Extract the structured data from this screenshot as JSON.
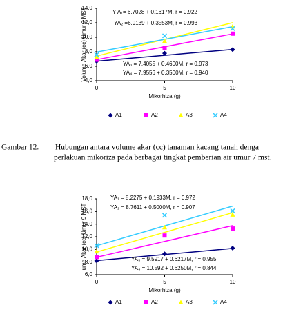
{
  "chart_data": [
    {
      "type": "scatter",
      "y_label": "Volume Akar (cc) Umur 7 MST",
      "x_label": "Mikorhiza (g)",
      "x": [
        0,
        5,
        10
      ],
      "xlim": [
        0,
        10
      ],
      "xticks": [
        0,
        5,
        10
      ],
      "ylim": [
        4,
        14
      ],
      "yticks": [
        {
          "value": 4,
          "label": "4,0"
        },
        {
          "value": 6,
          "label": "6,0"
        },
        {
          "value": 8,
          "label": "8,0"
        },
        {
          "value": 10,
          "label": "10,0"
        },
        {
          "value": 12,
          "label": "12,0"
        },
        {
          "value": 14,
          "label": "14,0"
        }
      ],
      "annotations": [
        "Y A₁= 6.7028 + 0.1617M, r = 0.922",
        "YA₂ =6.9139 +  0.3553M, r = 0.993",
        "YA₃ = 7.4055 + 0.4600M, r = 0.973",
        "YA₄ = 7.9556 + 0.3500M, r = 0.940"
      ],
      "series": [
        {
          "name": "A1",
          "color": "#000080",
          "marker": "diamond",
          "values": [
            6.7,
            7.8,
            8.3
          ],
          "trend": [
            6.7,
            7.51,
            8.32
          ]
        },
        {
          "name": "A2",
          "color": "#ff00ff",
          "marker": "square",
          "values": [
            6.9,
            8.5,
            10.5
          ],
          "trend": [
            6.91,
            8.69,
            10.47
          ]
        },
        {
          "name": "A3",
          "color": "#ffff00",
          "marker": "triangle",
          "values": [
            7.3,
            9.5,
            11.5
          ],
          "trend": [
            7.41,
            9.71,
            12.01
          ]
        },
        {
          "name": "A4",
          "color": "#33ccff",
          "marker": "x",
          "values": [
            7.6,
            10.2,
            11.2
          ],
          "trend": [
            7.96,
            9.71,
            11.46
          ]
        }
      ]
    },
    {
      "type": "scatter",
      "y_label": "ume Akar (cc) Umur 9 MST",
      "x_label": "Mikorhiza (g)",
      "x": [
        0,
        5,
        10
      ],
      "xlim": [
        0,
        10
      ],
      "xticks": [
        0,
        5,
        10
      ],
      "ylim": [
        6,
        18
      ],
      "yticks": [
        {
          "value": 6,
          "label": "6,0"
        },
        {
          "value": 8,
          "label": "8,0"
        },
        {
          "value": 10,
          "label": "10,0"
        },
        {
          "value": 12,
          "label": "12,0"
        },
        {
          "value": 14,
          "label": "14,0"
        },
        {
          "value": 16,
          "label": "16,0"
        },
        {
          "value": 18,
          "label": "18,0"
        }
      ],
      "annotations": [
        "YA₁ = 8.2275 + 0.1933M, r = 0.972",
        "YA₂ = 8.7611 + 0.5000M, r = 0.907",
        "YA₃ = 9.5917 + 0.6217M, r = 0.955",
        "YA₄ = 10.592 + 0.6250M, r = 0.844"
      ],
      "series": [
        {
          "name": "A1",
          "color": "#000080",
          "marker": "diamond",
          "values": [
            8.2,
            9.3,
            10.2
          ],
          "trend": [
            8.23,
            9.19,
            10.16
          ]
        },
        {
          "name": "A2",
          "color": "#ff00ff",
          "marker": "square",
          "values": [
            8.8,
            12.2,
            13.3
          ],
          "trend": [
            8.76,
            11.26,
            13.76
          ]
        },
        {
          "name": "A3",
          "color": "#ffff00",
          "marker": "triangle",
          "values": [
            9.7,
            13.5,
            15.5
          ],
          "trend": [
            9.59,
            12.7,
            15.81
          ]
        },
        {
          "name": "A4",
          "color": "#33ccff",
          "marker": "x",
          "values": [
            10.6,
            15.4,
            16.1
          ],
          "trend": [
            10.59,
            13.72,
            16.84
          ]
        }
      ]
    }
  ],
  "caption": {
    "label": "Gambar 12.",
    "line1": "Hubungan antara  volume akar (cc) tanaman kacang tanah denga",
    "line2": "perlakuan mikoriza pada berbagai tingkat  pemberian air umur 7 mst."
  }
}
